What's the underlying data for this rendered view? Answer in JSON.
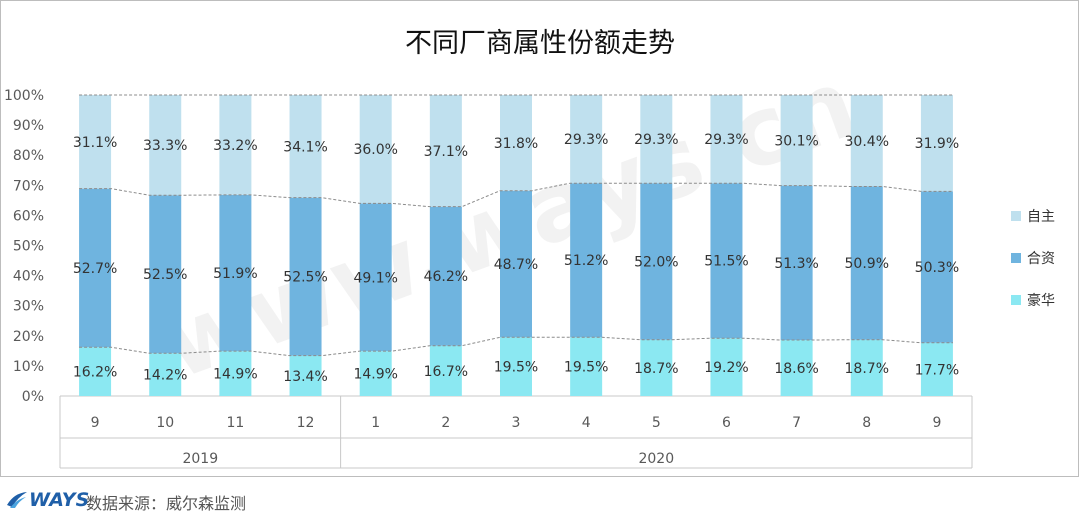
{
  "chart_data": {
    "type": "bar",
    "stacked": true,
    "title": "不同厂商属性份额走势",
    "categories": [
      "9",
      "10",
      "11",
      "12",
      "1",
      "2",
      "3",
      "4",
      "5",
      "6",
      "7",
      "8",
      "9"
    ],
    "year_groups": [
      {
        "label": "2019",
        "count": 4
      },
      {
        "label": "2020",
        "count": 9
      }
    ],
    "series": [
      {
        "name": "豪华",
        "color": "#8be8f2",
        "values": [
          16.2,
          14.2,
          14.9,
          13.4,
          14.9,
          16.7,
          19.5,
          19.5,
          18.7,
          19.2,
          18.6,
          18.7,
          17.7
        ],
        "labels": [
          "16.2%",
          "14.2%",
          "14.9%",
          "13.4%",
          "14.9%",
          "16.7%",
          "19.5%",
          "19.5%",
          "18.7%",
          "19.2%",
          "18.6%",
          "18.7%",
          "17.7%"
        ]
      },
      {
        "name": "合资",
        "color": "#6fb4df",
        "values": [
          52.7,
          52.5,
          51.9,
          52.5,
          49.1,
          46.2,
          48.7,
          51.2,
          52.0,
          51.5,
          51.3,
          50.9,
          50.3
        ],
        "labels": [
          "52.7%",
          "52.5%",
          "51.9%",
          "52.5%",
          "49.1%",
          "46.2%",
          "48.7%",
          "51.2%",
          "52.0%",
          "51.5%",
          "51.3%",
          "50.9%",
          "50.3%"
        ]
      },
      {
        "name": "自主",
        "color": "#bfe0ee",
        "values": [
          31.1,
          33.3,
          33.2,
          34.1,
          36.0,
          37.1,
          31.8,
          29.3,
          29.3,
          29.3,
          30.1,
          30.4,
          31.9
        ],
        "labels": [
          "31.1%",
          "33.3%",
          "33.2%",
          "34.1%",
          "36.0%",
          "37.1%",
          "31.8%",
          "29.3%",
          "29.3%",
          "29.3%",
          "30.1%",
          "30.4%",
          "31.9%"
        ]
      }
    ],
    "legend_order": [
      "自主",
      "合资",
      "豪华"
    ],
    "legend_position": "right",
    "y_ticks": [
      "0%",
      "10%",
      "20%",
      "30%",
      "40%",
      "50%",
      "60%",
      "70%",
      "80%",
      "90%",
      "100%"
    ],
    "ylim": [
      0,
      100
    ],
    "watermark": "www.ways.cn"
  },
  "footer": {
    "logo": "WAYS",
    "source": "数据来源：威尔森监测"
  }
}
